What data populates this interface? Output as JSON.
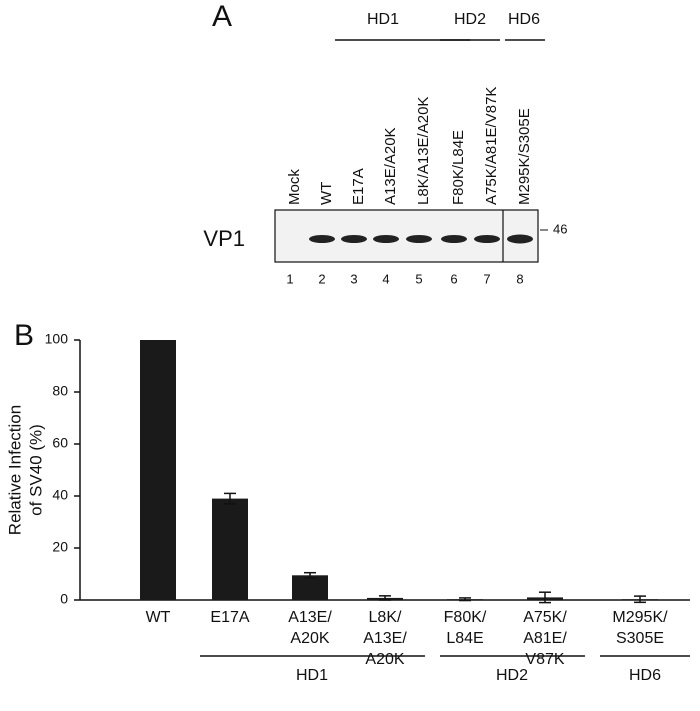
{
  "panel_a": {
    "label": "A",
    "groups": [
      "HD1",
      "HD2",
      "HD6"
    ],
    "lanes": [
      "Mock",
      "WT",
      "E17A",
      "A13E/A20K",
      "L8K/A13E/A20K",
      "F80K/L84E",
      "A75K/A81E/V87K",
      "M295K/S305E"
    ],
    "lane_numbers": [
      1,
      2,
      3,
      4,
      5,
      6,
      7,
      8
    ],
    "protein": "VP1",
    "marker": 46
  },
  "chart_data": {
    "type": "bar",
    "label": "B",
    "ylabel": [
      "Relative Infection",
      "of SV40 (%)"
    ],
    "categories": [
      "WT",
      "E17A",
      "A13E/\nA20K",
      "L8K/\nA13E/\nA20K",
      "F80K/\nL84E",
      "A75K/\nA81E/\nV87K",
      "M295K/\nS305E"
    ],
    "values": [
      100,
      39,
      9.5,
      0.8,
      0.3,
      1,
      0.3
    ],
    "errors": [
      0,
      2,
      1,
      0.8,
      0.5,
      2,
      1.2
    ],
    "color": "#1a1a1a",
    "ylim": [
      0,
      100
    ],
    "yticks": [
      0,
      20,
      40,
      60,
      80,
      100
    ],
    "groups": [
      "HD1",
      "HD2",
      "HD6"
    ]
  }
}
